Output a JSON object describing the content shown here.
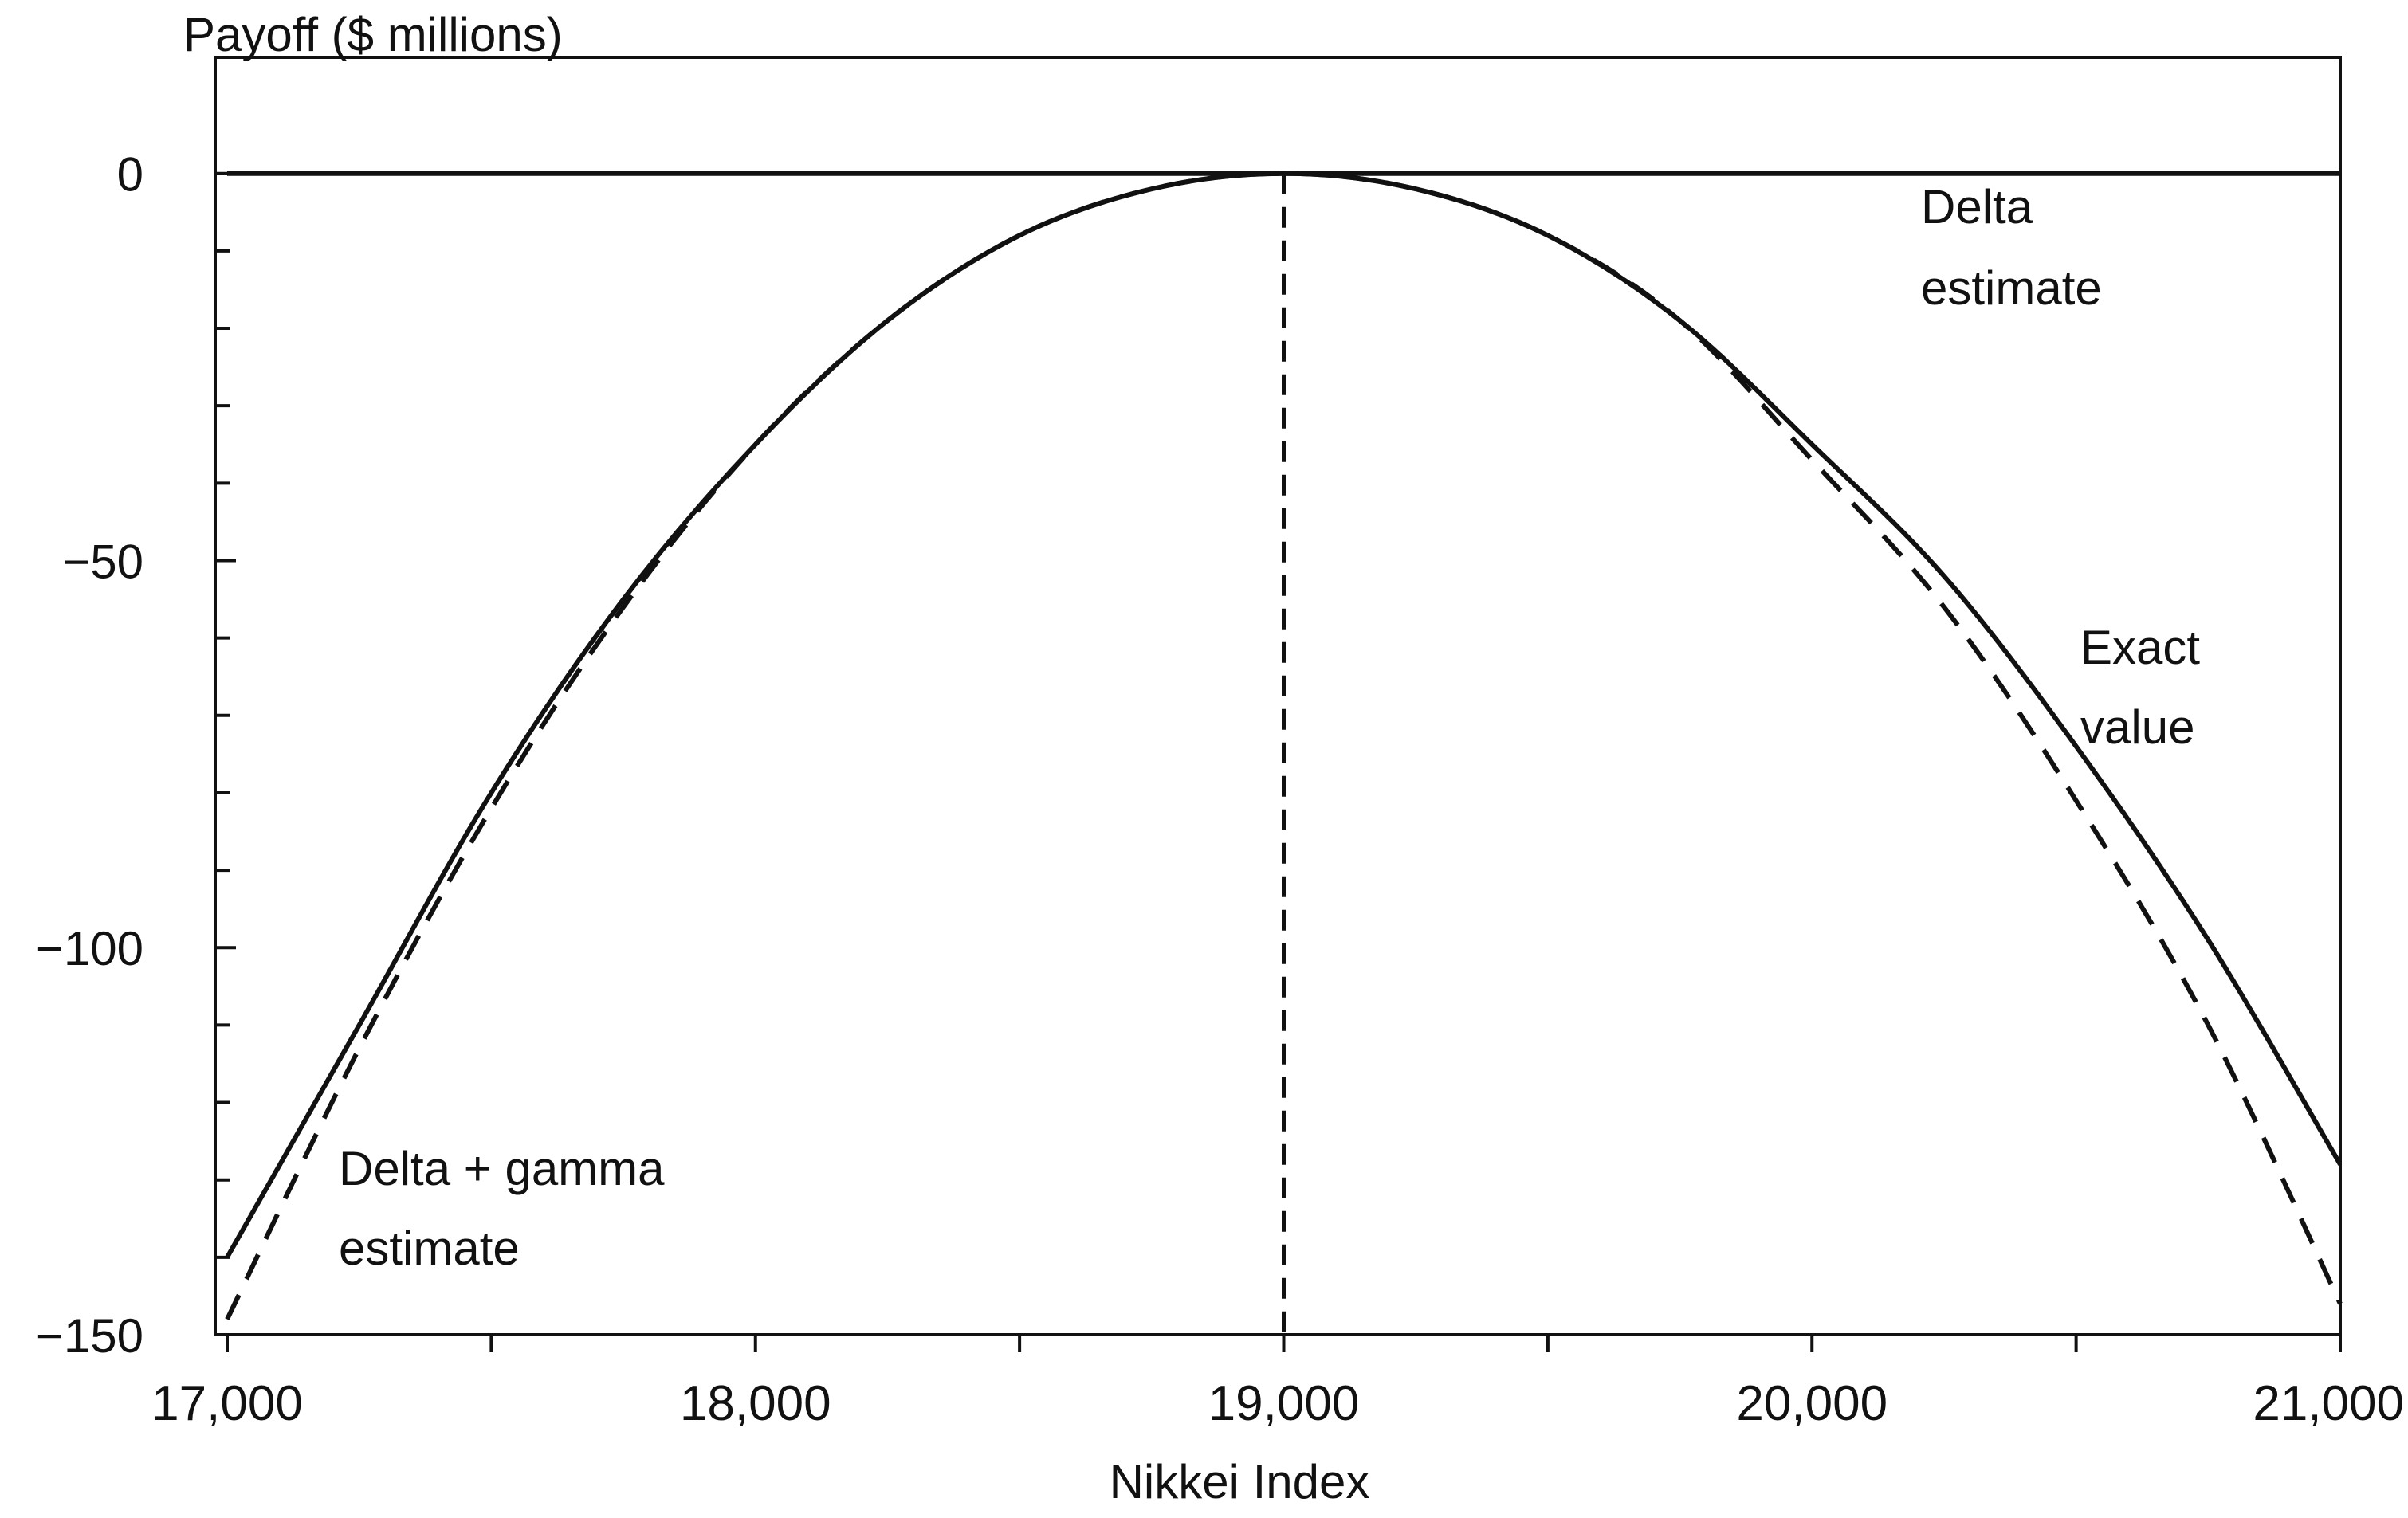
{
  "chart_data": {
    "type": "line",
    "title": "",
    "ylabel": "Payoff ($ millions)",
    "xlabel": "Nikkei Index",
    "xlim": [
      17000,
      21000
    ],
    "ylim": [
      -150,
      15
    ],
    "x_ticks": [
      17000,
      18000,
      19000,
      20000,
      21000
    ],
    "x_tick_labels": [
      "17,000",
      "18,000",
      "19,000",
      "20,000",
      "21,000"
    ],
    "y_ticks": [
      0,
      -50,
      -100,
      -150
    ],
    "y_tick_labels": [
      "0",
      "−50",
      "−100",
      "−150"
    ],
    "grid": false,
    "reference_line_x": 19000,
    "series": [
      {
        "name": "Delta estimate",
        "style": "solid",
        "x": [
          17000,
          21000
        ],
        "y": [
          0,
          0
        ]
      },
      {
        "name": "Exact value",
        "style": "solid",
        "x": [
          17000,
          17250,
          17500,
          17750,
          18000,
          18250,
          18500,
          18750,
          19000,
          19250,
          19500,
          19750,
          20000,
          20250,
          20500,
          20750,
          21000
        ],
        "y": [
          -140,
          -110,
          -80,
          -55,
          -35,
          -19,
          -8,
          -2,
          0,
          -2,
          -8,
          -19,
          -35,
          -52,
          -74,
          -99,
          -128
        ]
      },
      {
        "name": "Delta + gamma estimate",
        "style": "dashed",
        "x": [
          17000,
          17250,
          17500,
          17750,
          18000,
          18250,
          18500,
          18750,
          19000,
          19250,
          19500,
          19750,
          20000,
          20250,
          20500,
          20750,
          21000
        ],
        "y": [
          -148,
          -113,
          -82,
          -56,
          -35,
          -19,
          -8,
          -2,
          0,
          -2,
          -8,
          -19,
          -37,
          -56,
          -81,
          -110,
          -146
        ]
      }
    ],
    "annotations": [
      {
        "line1": "Delta",
        "line2": "estimate"
      },
      {
        "line1": "Exact",
        "line2": "value"
      },
      {
        "line1": "Delta + gamma",
        "line2": "estimate"
      }
    ]
  }
}
